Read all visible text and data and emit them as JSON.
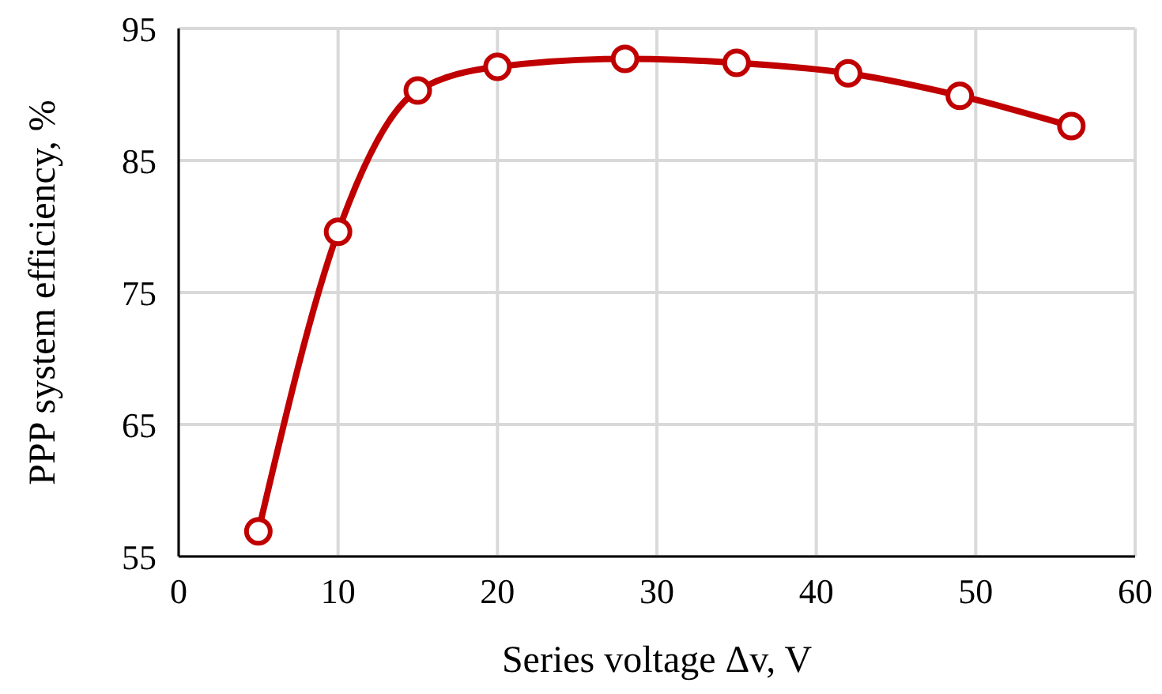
{
  "chart_data": {
    "type": "line",
    "xlabel": "Series voltage Δv, V",
    "ylabel": "PPP system efficiency, %",
    "x": [
      5,
      10,
      15,
      20,
      28,
      35,
      42,
      49,
      56
    ],
    "series": [
      {
        "color": "#c00000",
        "values": [
          56.9,
          79.6,
          90.3,
          92.1,
          92.7,
          92.4,
          91.6,
          89.9,
          87.6
        ]
      }
    ],
    "xlim": [
      0,
      60
    ],
    "xticks": [
      0,
      10,
      20,
      30,
      40,
      50,
      60
    ],
    "ylim": [
      55,
      95
    ],
    "yticks": [
      55,
      65,
      75,
      85,
      95
    ],
    "grid": true,
    "marker": "circle",
    "line_style": "solid",
    "legend": false
  }
}
